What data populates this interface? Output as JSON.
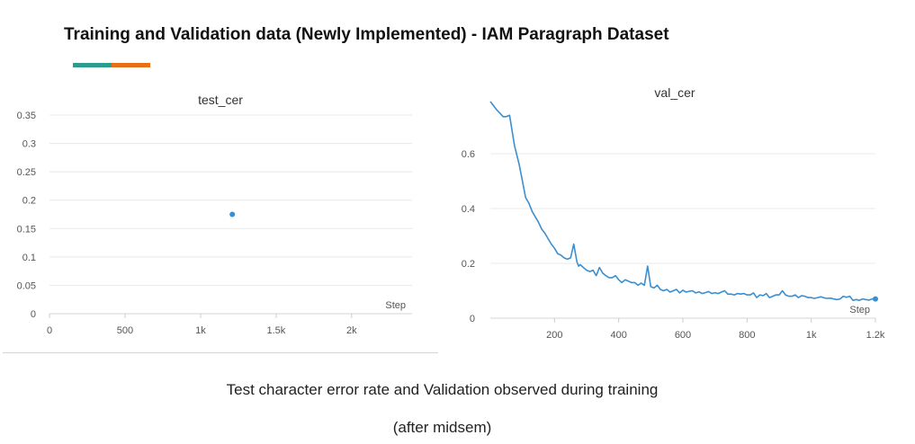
{
  "header": {
    "title": "Training and Validation data (Newly Implemented) - IAM Paragraph Dataset",
    "accent_colors": [
      "#2a9d8f",
      "#e76f1a"
    ]
  },
  "chart_data": [
    {
      "type": "scatter",
      "title": "test_cer",
      "xlabel": "Step",
      "ylabel": "",
      "xlim": [
        0,
        2400
      ],
      "ylim": [
        0,
        0.35
      ],
      "xticks": [
        0,
        500,
        1000,
        1500,
        2000
      ],
      "xtick_labels": [
        "0",
        "500",
        "1k",
        "1.5k",
        "2k"
      ],
      "yticks": [
        0,
        0.05,
        0.1,
        0.15,
        0.2,
        0.25,
        0.3,
        0.35
      ],
      "ytick_labels": [
        "0",
        "0.05",
        "0.1",
        "0.15",
        "0.2",
        "0.25",
        "0.3",
        "0.35"
      ],
      "grid": true,
      "color": "#3a8fd0",
      "series": [
        {
          "x": [
            1210
          ],
          "y": [
            0.175
          ]
        }
      ]
    },
    {
      "type": "line",
      "title": "val_cer",
      "xlabel": "Step",
      "ylabel": "",
      "xlim": [
        0,
        1200
      ],
      "ylim": [
        0,
        0.8
      ],
      "xticks": [
        200,
        400,
        600,
        800,
        1000,
        1200
      ],
      "xtick_labels": [
        "200",
        "400",
        "600",
        "800",
        "1k",
        "1.2k"
      ],
      "yticks": [
        0,
        0.2,
        0.4,
        0.6
      ],
      "ytick_labels": [
        "0",
        "0.2",
        "0.4",
        "0.6"
      ],
      "grid": true,
      "color": "#3a8fd0",
      "series": [
        {
          "x": [
            0,
            20,
            40,
            50,
            60,
            75,
            90,
            100,
            110,
            120,
            130,
            140,
            150,
            160,
            170,
            180,
            190,
            200,
            210,
            220,
            230,
            240,
            250,
            260,
            270,
            275,
            280,
            290,
            300,
            310,
            320,
            330,
            340,
            350,
            360,
            370,
            380,
            390,
            400,
            410,
            420,
            430,
            440,
            450,
            460,
            470,
            480,
            490,
            500,
            510,
            520,
            530,
            540,
            550,
            560,
            570,
            580,
            590,
            600,
            610,
            620,
            630,
            640,
            650,
            660,
            670,
            680,
            690,
            700,
            710,
            720,
            730,
            740,
            750,
            760,
            770,
            780,
            790,
            800,
            810,
            820,
            830,
            840,
            850,
            860,
            870,
            880,
            890,
            900,
            910,
            920,
            930,
            940,
            950,
            960,
            970,
            980,
            990,
            1000,
            1010,
            1020,
            1030,
            1040,
            1050,
            1060,
            1070,
            1080,
            1090,
            1100,
            1110,
            1120,
            1130,
            1140,
            1150,
            1160,
            1170,
            1180,
            1190,
            1200
          ],
          "y": [
            0.79,
            0.76,
            0.735,
            0.735,
            0.74,
            0.63,
            0.56,
            0.5,
            0.44,
            0.42,
            0.39,
            0.37,
            0.35,
            0.325,
            0.31,
            0.29,
            0.27,
            0.255,
            0.235,
            0.23,
            0.22,
            0.215,
            0.22,
            0.27,
            0.205,
            0.19,
            0.195,
            0.185,
            0.175,
            0.17,
            0.175,
            0.155,
            0.185,
            0.165,
            0.155,
            0.148,
            0.148,
            0.155,
            0.14,
            0.13,
            0.14,
            0.135,
            0.13,
            0.13,
            0.12,
            0.128,
            0.12,
            0.19,
            0.115,
            0.11,
            0.12,
            0.105,
            0.1,
            0.105,
            0.095,
            0.1,
            0.105,
            0.092,
            0.102,
            0.095,
            0.098,
            0.1,
            0.092,
            0.096,
            0.09,
            0.093,
            0.097,
            0.09,
            0.093,
            0.09,
            0.095,
            0.1,
            0.088,
            0.088,
            0.085,
            0.09,
            0.088,
            0.09,
            0.085,
            0.085,
            0.092,
            0.075,
            0.085,
            0.082,
            0.09,
            0.075,
            0.08,
            0.085,
            0.085,
            0.1,
            0.085,
            0.08,
            0.08,
            0.085,
            0.075,
            0.082,
            0.08,
            0.075,
            0.075,
            0.072,
            0.075,
            0.078,
            0.074,
            0.072,
            0.073,
            0.07,
            0.068,
            0.07,
            0.08,
            0.076,
            0.08,
            0.065,
            0.068,
            0.065,
            0.07,
            0.068,
            0.066,
            0.07,
            0.07
          ]
        }
      ]
    }
  ],
  "captions": {
    "line1": "Test character error rate and Validation observed during training",
    "line2": "(after midsem)"
  }
}
